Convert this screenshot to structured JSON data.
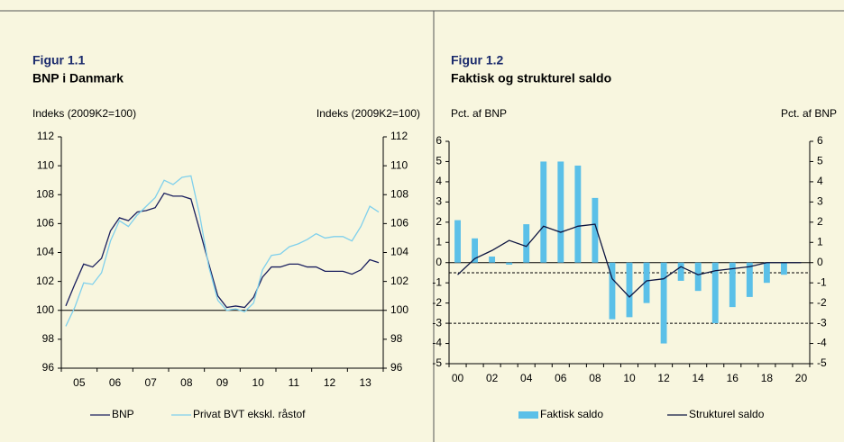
{
  "chart_data": [
    {
      "type": "line",
      "label": "Figur 1.1",
      "title": "BNP i Danmark",
      "ylabel": "Indeks (2009K2=100)",
      "y2label": "Indeks (2009K2=100)",
      "categories": [
        null,
        "05",
        null,
        null,
        null,
        "06",
        null,
        null,
        null,
        "07",
        null,
        null,
        null,
        "08",
        null,
        null,
        null,
        "09",
        null,
        null,
        null,
        "10",
        null,
        null,
        null,
        "11",
        null,
        null,
        null,
        "12",
        null,
        null,
        null,
        "13",
        null,
        null
      ],
      "series": [
        {
          "name": "BNP",
          "type": "line",
          "color": "#1a1f5e",
          "values": [
            100.3,
            101.8,
            103.2,
            103.0,
            103.6,
            105.5,
            106.4,
            106.2,
            106.8,
            106.9,
            107.1,
            108.1,
            107.9,
            107.9,
            107.7,
            105.5,
            103.2,
            101.0,
            100.2,
            100.3,
            100.2,
            100.9,
            102.3,
            103.0,
            103.0,
            103.2,
            103.2,
            103.0,
            103.0,
            102.7,
            102.7,
            102.7,
            102.5,
            102.8,
            103.5,
            103.3
          ]
        },
        {
          "name": "Privat BVT ekskl. råstof",
          "type": "line",
          "color": "#7fd0ec",
          "values": [
            98.9,
            100.2,
            101.9,
            101.8,
            102.6,
            104.8,
            106.2,
            105.8,
            106.6,
            107.2,
            107.8,
            109.0,
            108.7,
            109.2,
            109.3,
            106.5,
            103.0,
            100.7,
            100.0,
            100.1,
            99.9,
            100.5,
            102.8,
            103.8,
            103.9,
            104.4,
            104.6,
            104.9,
            105.3,
            105.0,
            105.1,
            105.1,
            104.8,
            105.8,
            107.2,
            106.8
          ]
        }
      ],
      "ylim": [
        96,
        112
      ],
      "yticks": [
        96,
        98,
        100,
        102,
        104,
        106,
        108,
        110,
        112
      ],
      "y2lim": [
        96,
        112
      ],
      "y2ticks": [
        96,
        98,
        100,
        102,
        104,
        106,
        108,
        110,
        112
      ],
      "reference_lines": [
        100
      ],
      "legend": "bottom"
    },
    {
      "type": "bar",
      "label": "Figur 1.2",
      "title": "Faktisk og strukturel saldo",
      "ylabel": "Pct. af BNP",
      "y2label": "Pct. af BNP",
      "categories": [
        "00",
        null,
        "02",
        null,
        "04",
        null,
        "06",
        null,
        "08",
        null,
        "10",
        null,
        "12",
        null,
        "14",
        null,
        "16",
        null,
        "18",
        null,
        "20"
      ],
      "series": [
        {
          "name": "Faktisk saldo",
          "type": "bar",
          "color": "#5bc0e8",
          "values": [
            2.1,
            1.2,
            0.3,
            -0.1,
            1.9,
            5.0,
            5.0,
            4.8,
            3.2,
            -2.8,
            -2.7,
            -2.0,
            -4.0,
            -0.9,
            -1.4,
            -3.0,
            -2.2,
            -1.7,
            -1.0,
            -0.6,
            0.0
          ]
        },
        {
          "name": "Strukturel saldo",
          "type": "line",
          "color": "#0d1540",
          "values": [
            -0.6,
            0.2,
            0.6,
            1.1,
            0.8,
            1.8,
            1.5,
            1.8,
            1.9,
            -0.8,
            -1.7,
            -0.9,
            -0.8,
            -0.2,
            -0.6,
            -0.4,
            -0.3,
            -0.2,
            0.0,
            0.0,
            0.0
          ]
        }
      ],
      "ylim": [
        -5,
        6
      ],
      "yticks": [
        -5,
        -4,
        -3,
        -2,
        -1,
        0,
        1,
        2,
        3,
        4,
        5,
        6
      ],
      "y2lim": [
        -5,
        6
      ],
      "y2ticks": [
        -5,
        -4,
        -3,
        -2,
        -1,
        0,
        1,
        2,
        3,
        4,
        5,
        6
      ],
      "reference_lines": [
        -0.5,
        -3
      ],
      "legend": "bottom"
    }
  ]
}
